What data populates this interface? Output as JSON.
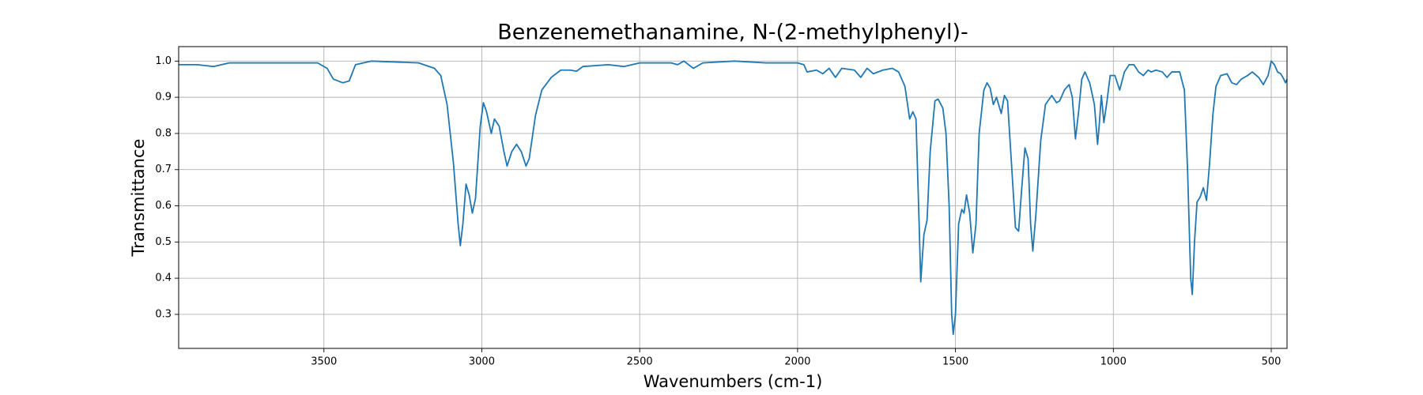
{
  "chart_data": {
    "type": "line",
    "title": "Benzenemethanamine, N-(2-methylphenyl)-",
    "xlabel": "Wavenumbers (cm-1)",
    "ylabel": "Transmittance",
    "color": "#1f77b4",
    "grid": true,
    "xlim": [
      3960,
      450
    ],
    "ylim": [
      0.206,
      1.04
    ],
    "xticks": [
      3500,
      3000,
      2500,
      2000,
      1500,
      1000,
      500
    ],
    "yticks": [
      0.3,
      0.4,
      0.5,
      0.6,
      0.7,
      0.8,
      0.9,
      {
        "value": 1,
        "label": "1.0"
      }
    ],
    "x": [
      3960,
      3900,
      3850,
      3800,
      3700,
      3600,
      3520,
      3490,
      3470,
      3440,
      3420,
      3400,
      3350,
      3200,
      3150,
      3130,
      3110,
      3090,
      3075,
      3068,
      3060,
      3050,
      3040,
      3030,
      3020,
      3005,
      2995,
      2985,
      2970,
      2960,
      2945,
      2930,
      2920,
      2905,
      2890,
      2875,
      2860,
      2850,
      2830,
      2810,
      2780,
      2750,
      2720,
      2700,
      2680,
      2600,
      2550,
      2500,
      2400,
      2380,
      2360,
      2330,
      2300,
      2200,
      2100,
      2000,
      1980,
      1970,
      1940,
      1920,
      1900,
      1880,
      1860,
      1820,
      1800,
      1780,
      1760,
      1730,
      1700,
      1680,
      1660,
      1645,
      1635,
      1625,
      1615,
      1610,
      1600,
      1590,
      1580,
      1565,
      1555,
      1540,
      1530,
      1520,
      1512,
      1507,
      1500,
      1490,
      1480,
      1473,
      1465,
      1455,
      1445,
      1435,
      1425,
      1410,
      1400,
      1390,
      1380,
      1370,
      1355,
      1345,
      1335,
      1325,
      1310,
      1300,
      1290,
      1280,
      1270,
      1262,
      1255,
      1245,
      1230,
      1215,
      1195,
      1180,
      1170,
      1155,
      1140,
      1130,
      1120,
      1110,
      1100,
      1090,
      1075,
      1060,
      1050,
      1045,
      1038,
      1030,
      1020,
      1010,
      995,
      980,
      965,
      950,
      935,
      920,
      905,
      890,
      880,
      865,
      845,
      830,
      815,
      790,
      775,
      765,
      755,
      750,
      743,
      735,
      725,
      715,
      705,
      695,
      685,
      675,
      660,
      640,
      625,
      610,
      595,
      575,
      560,
      540,
      525,
      510,
      500,
      490,
      480,
      470,
      460,
      455,
      450
    ],
    "values": [
      0.99,
      0.99,
      0.985,
      0.995,
      0.995,
      0.995,
      0.995,
      0.98,
      0.95,
      0.94,
      0.945,
      0.99,
      1.0,
      0.995,
      0.98,
      0.96,
      0.88,
      0.72,
      0.55,
      0.49,
      0.55,
      0.66,
      0.63,
      0.58,
      0.62,
      0.82,
      0.885,
      0.86,
      0.8,
      0.84,
      0.82,
      0.75,
      0.71,
      0.75,
      0.77,
      0.75,
      0.71,
      0.73,
      0.85,
      0.92,
      0.955,
      0.975,
      0.975,
      0.972,
      0.985,
      0.99,
      0.985,
      0.995,
      0.995,
      0.99,
      1.0,
      0.98,
      0.995,
      1.0,
      0.995,
      0.995,
      0.99,
      0.97,
      0.975,
      0.965,
      0.98,
      0.955,
      0.98,
      0.975,
      0.955,
      0.98,
      0.965,
      0.975,
      0.98,
      0.97,
      0.93,
      0.84,
      0.86,
      0.84,
      0.55,
      0.39,
      0.52,
      0.56,
      0.75,
      0.89,
      0.895,
      0.87,
      0.8,
      0.6,
      0.3,
      0.245,
      0.3,
      0.55,
      0.59,
      0.58,
      0.63,
      0.58,
      0.47,
      0.55,
      0.8,
      0.92,
      0.94,
      0.925,
      0.88,
      0.9,
      0.855,
      0.905,
      0.89,
      0.75,
      0.54,
      0.53,
      0.65,
      0.76,
      0.73,
      0.55,
      0.475,
      0.58,
      0.78,
      0.88,
      0.905,
      0.885,
      0.89,
      0.92,
      0.935,
      0.9,
      0.785,
      0.86,
      0.95,
      0.97,
      0.94,
      0.88,
      0.77,
      0.82,
      0.905,
      0.83,
      0.89,
      0.96,
      0.96,
      0.92,
      0.97,
      0.99,
      0.99,
      0.97,
      0.96,
      0.975,
      0.97,
      0.975,
      0.97,
      0.955,
      0.97,
      0.97,
      0.92,
      0.7,
      0.4,
      0.355,
      0.5,
      0.61,
      0.625,
      0.65,
      0.615,
      0.72,
      0.85,
      0.93,
      0.96,
      0.965,
      0.94,
      0.935,
      0.95,
      0.96,
      0.97,
      0.955,
      0.935,
      0.96,
      1.0,
      0.99,
      0.97,
      0.965,
      0.95,
      0.94,
      0.95
    ]
  }
}
